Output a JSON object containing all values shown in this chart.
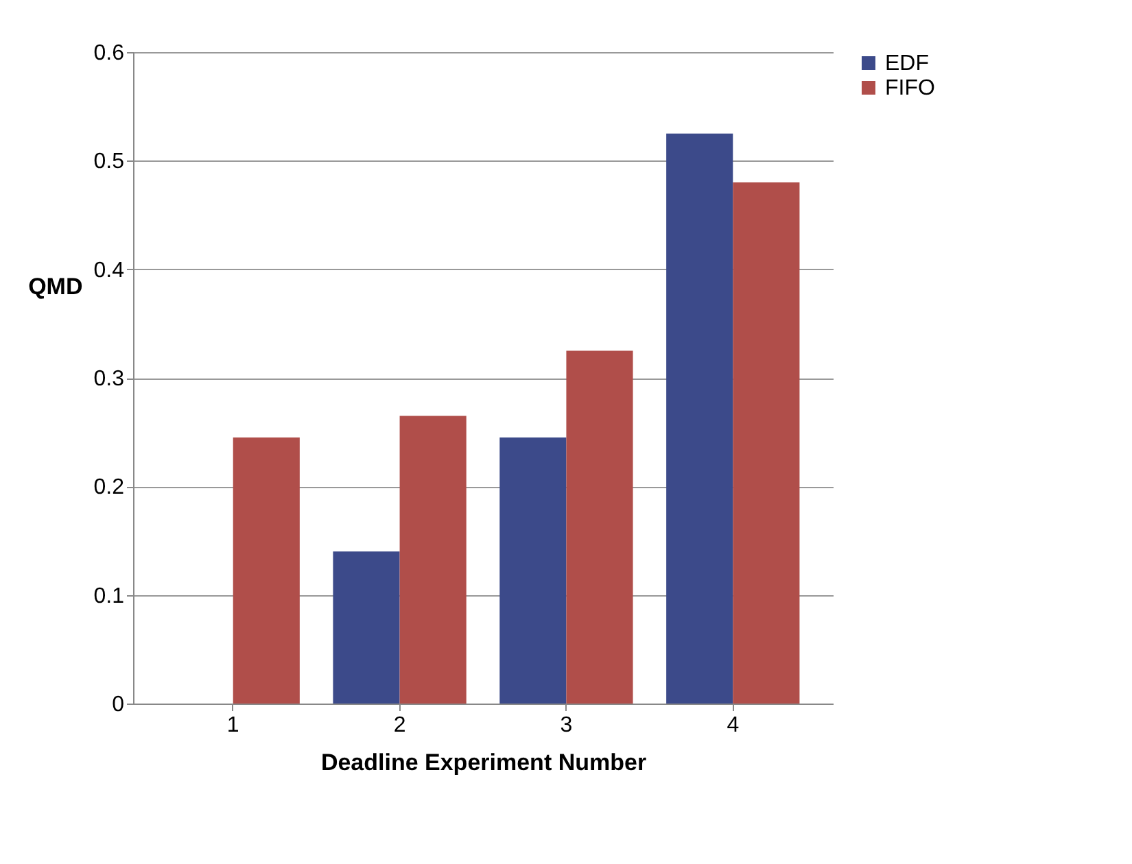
{
  "chart_data": {
    "type": "bar",
    "xlabel": "Deadline Experiment Number",
    "ylabel": "QMD",
    "categories": [
      "1",
      "2",
      "3",
      "4"
    ],
    "series": [
      {
        "name": "EDF",
        "color": "#3c4a8a",
        "values": [
          0,
          0.14,
          0.245,
          0.525
        ]
      },
      {
        "name": "FIFO",
        "color": "#b04e4a",
        "values": [
          0.245,
          0.265,
          0.325,
          0.48
        ]
      }
    ],
    "ylim": [
      0,
      0.6
    ],
    "yticks": [
      0,
      0.1,
      0.2,
      0.3,
      0.4,
      0.5,
      0.6
    ],
    "grid": "y",
    "legend": "right"
  }
}
